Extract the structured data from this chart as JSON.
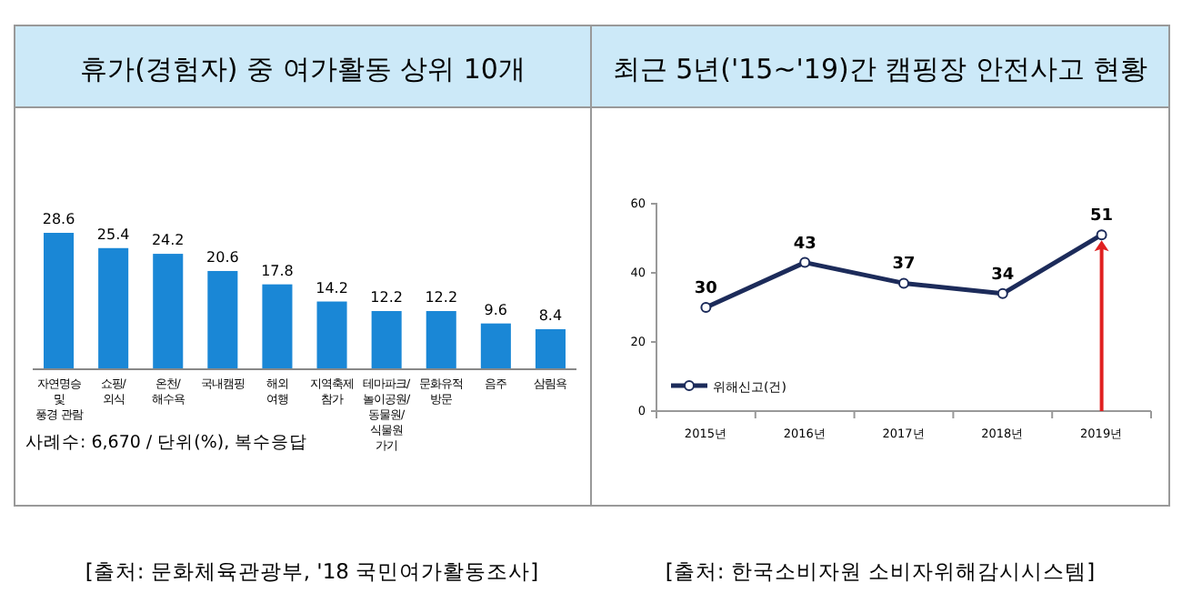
{
  "chart_data": [
    {
      "type": "bar",
      "title": "휴가(경험자) 중 여가활동 상위 10개",
      "categories": [
        "자연명승\n및\n풍경 관람",
        "쇼핑/\n외식",
        "온천/\n해수욕",
        "국내캠핑",
        "해외\n여행",
        "지역축제\n참가",
        "테마파크/\n놀이공원/\n동물원/\n식물원\n가기",
        "문화유적\n방문",
        "음주",
        "삼림욕"
      ],
      "values": [
        28.6,
        25.4,
        24.2,
        20.6,
        17.8,
        14.2,
        12.2,
        12.2,
        9.6,
        8.4
      ],
      "color": "#1a87d6",
      "data_labels": true,
      "annotations": [
        "사례수: 6,670 / 단위(%), 복수응답",
        "[출처: 문화체육관광부, '18 국민여가활동조사]"
      ]
    },
    {
      "type": "line",
      "title": "최근 5년('15~'19)간 캠핑장 안전사고 현황",
      "categories": [
        "2015년",
        "2016년",
        "2017년",
        "2018년",
        "2019년"
      ],
      "series": [
        {
          "name": "위해신고(건)",
          "color": "#1c2b5a",
          "values": [
            30,
            43,
            37,
            34,
            51
          ]
        }
      ],
      "ylim": [
        0,
        60
      ],
      "yticks": [
        0,
        20,
        40,
        60
      ],
      "data_labels": true,
      "marker": "circle",
      "legend": "bottom left",
      "annotations": [
        "[출처: 한국소비자원  소비자위해감시시스템]"
      ]
    }
  ]
}
